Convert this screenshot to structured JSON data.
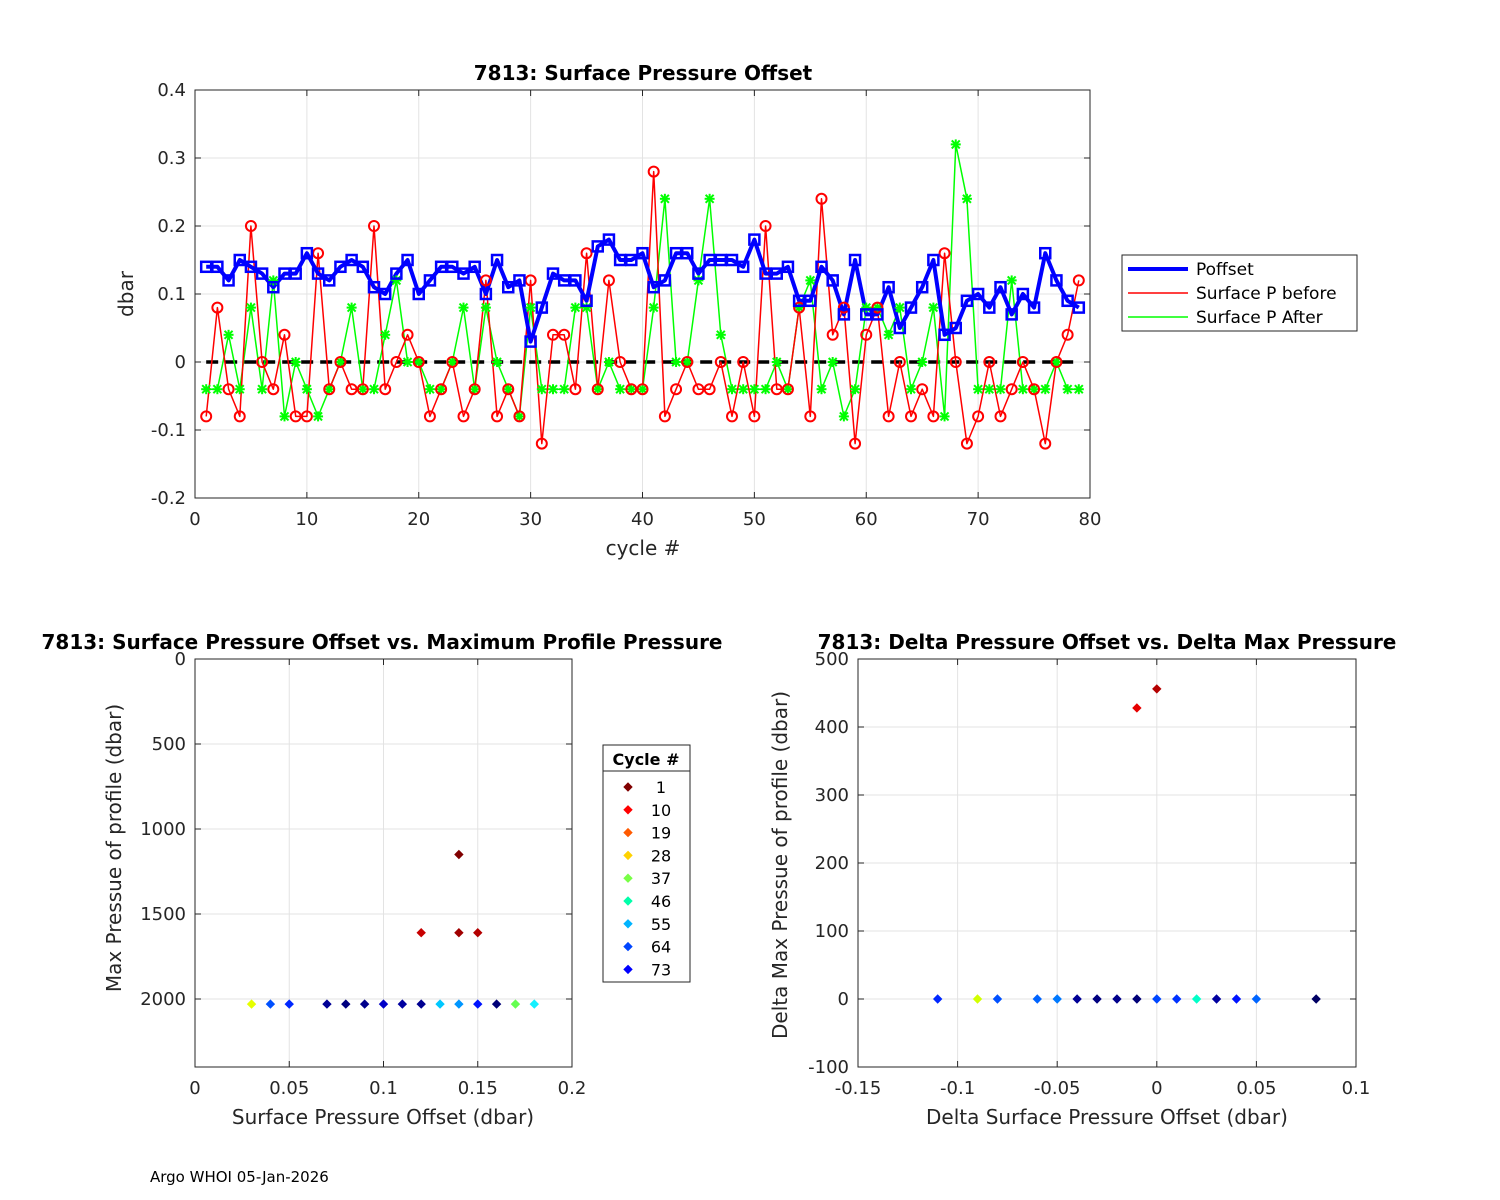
{
  "footer": "Argo WHOI 05-Jan-2026",
  "chart_data": [
    {
      "type": "line",
      "title": "7813: Surface Pressure Offset",
      "xlabel": "cycle #",
      "ylabel": "dbar",
      "xlim": [
        0,
        80
      ],
      "ylim": [
        -0.2,
        0.4
      ],
      "xticks": [
        0,
        10,
        20,
        30,
        40,
        50,
        60,
        70,
        80
      ],
      "yticks": [
        -0.2,
        -0.1,
        0,
        0.1,
        0.2,
        0.3,
        0.4
      ],
      "ytick_labels": [
        "-0.2",
        "-0.1",
        "0",
        "0.1",
        "0.2",
        "0.3",
        "0.4"
      ],
      "grid": true,
      "legend_location": "outside-right",
      "x": [
        1,
        2,
        3,
        4,
        5,
        6,
        7,
        8,
        9,
        10,
        11,
        12,
        13,
        14,
        15,
        16,
        17,
        18,
        19,
        20,
        21,
        22,
        23,
        24,
        25,
        26,
        27,
        28,
        29,
        30,
        31,
        32,
        33,
        34,
        35,
        36,
        37,
        38,
        39,
        40,
        41,
        42,
        43,
        44,
        45,
        46,
        47,
        48,
        49,
        50,
        51,
        52,
        53,
        54,
        55,
        56,
        57,
        58,
        59,
        60,
        61,
        62,
        63,
        64,
        65,
        66,
        67,
        68,
        69,
        70,
        71,
        72,
        73,
        74,
        75,
        76,
        77,
        78,
        79
      ],
      "series": [
        {
          "name": "Poffset",
          "color": "#0000ff",
          "values": [
            0.14,
            0.14,
            0.12,
            0.15,
            0.14,
            0.13,
            0.11,
            0.13,
            0.13,
            0.16,
            0.13,
            0.12,
            0.14,
            0.15,
            0.14,
            0.11,
            0.1,
            0.13,
            0.15,
            0.1,
            0.12,
            0.14,
            0.14,
            0.13,
            0.14,
            0.1,
            0.15,
            0.11,
            0.12,
            0.03,
            0.08,
            0.13,
            0.12,
            0.12,
            0.09,
            0.17,
            0.18,
            0.15,
            0.15,
            0.16,
            0.11,
            0.12,
            0.16,
            0.16,
            0.13,
            0.15,
            0.15,
            0.15,
            0.14,
            0.18,
            0.13,
            0.13,
            0.14,
            0.09,
            0.09,
            0.14,
            0.12,
            0.07,
            0.15,
            0.07,
            0.07,
            0.11,
            0.05,
            0.08,
            0.11,
            0.15,
            0.04,
            0.05,
            0.09,
            0.1,
            0.08,
            0.11,
            0.07,
            0.1,
            0.08,
            0.16,
            0.12,
            0.09,
            0.08
          ]
        },
        {
          "name": "Surface P before",
          "color": "#ff0000",
          "values": [
            -0.08,
            0.08,
            -0.04,
            -0.08,
            0.2,
            0.0,
            -0.04,
            0.04,
            -0.08,
            -0.08,
            0.16,
            -0.04,
            0.0,
            -0.04,
            -0.04,
            0.2,
            -0.04,
            0.0,
            0.04,
            0.0,
            -0.08,
            -0.04,
            0.0,
            -0.08,
            -0.04,
            0.12,
            -0.08,
            -0.04,
            -0.08,
            0.12,
            -0.12,
            0.04,
            0.04,
            -0.04,
            0.16,
            -0.04,
            0.12,
            0.0,
            -0.04,
            -0.04,
            0.28,
            -0.08,
            -0.04,
            0.0,
            -0.04,
            -0.04,
            0.0,
            -0.08,
            0.0,
            -0.08,
            0.2,
            -0.04,
            -0.04,
            0.08,
            -0.08,
            0.24,
            0.04,
            0.08,
            -0.12,
            0.04,
            0.08,
            -0.08,
            0.0,
            -0.08,
            -0.04,
            -0.08,
            0.16,
            0.0,
            -0.12,
            -0.08,
            0.0,
            -0.08,
            -0.04,
            0.0,
            -0.04,
            -0.12,
            0.0,
            0.04,
            0.12
          ]
        },
        {
          "name": "Surface P After",
          "color": "#00ff00",
          "values": [
            -0.04,
            -0.04,
            0.04,
            -0.04,
            0.08,
            -0.04,
            0.12,
            -0.08,
            0.0,
            -0.04,
            -0.08,
            -0.04,
            0.0,
            0.08,
            -0.04,
            -0.04,
            0.04,
            0.12,
            0.0,
            0.0,
            -0.04,
            -0.04,
            0.0,
            0.08,
            -0.04,
            0.08,
            0.0,
            -0.04,
            -0.08,
            0.08,
            -0.04,
            -0.04,
            -0.04,
            0.08,
            0.08,
            -0.04,
            0.0,
            -0.04,
            -0.04,
            -0.04,
            0.08,
            0.24,
            0.0,
            0.0,
            0.12,
            0.24,
            0.04,
            -0.04,
            -0.04,
            -0.04,
            -0.04,
            0.0,
            -0.04,
            0.08,
            0.12,
            -0.04,
            0.0,
            -0.08,
            -0.04,
            0.08,
            0.08,
            0.04,
            0.08,
            -0.04,
            0.0,
            0.08,
            -0.08,
            0.32,
            0.24,
            -0.04,
            -0.04,
            -0.04,
            0.12,
            -0.04,
            -0.04,
            -0.04,
            0.0,
            -0.04,
            -0.04
          ]
        }
      ],
      "legend": [
        "Poffset",
        "Surface P before",
        "Surface P After"
      ]
    },
    {
      "type": "scatter",
      "title": "7813: Surface Pressure Offset vs. Maximum Profile Pressure",
      "xlabel": "Surface Pressure Offset (dbar)",
      "ylabel": "Max Pressue of profile (dbar)",
      "xlim": [
        0,
        0.2
      ],
      "ylim": [
        0,
        2400
      ],
      "y_reversed": true,
      "xticks": [
        0,
        0.05,
        0.1,
        0.15,
        0.2
      ],
      "xtick_labels": [
        "0",
        "0.05",
        "0.1",
        "0.15",
        "0.2"
      ],
      "yticks": [
        0,
        500,
        1000,
        1500,
        2000
      ],
      "grid": true,
      "legend_title": "Cycle #",
      "legend_entries": [
        {
          "label": "1",
          "color": "#800000"
        },
        {
          "label": "10",
          "color": "#ff0000"
        },
        {
          "label": "19",
          "color": "#ff5a00"
        },
        {
          "label": "28",
          "color": "#ffd200"
        },
        {
          "label": "37",
          "color": "#78ff46"
        },
        {
          "label": "46",
          "color": "#00ffaa"
        },
        {
          "label": "55",
          "color": "#00b4ff"
        },
        {
          "label": "64",
          "color": "#0046ff"
        },
        {
          "label": "73",
          "color": "#0000ff"
        }
      ],
      "points": [
        {
          "x": 0.14,
          "y": 1150,
          "color": "#800000"
        },
        {
          "x": 0.12,
          "y": 1610,
          "color": "#c80000"
        },
        {
          "x": 0.14,
          "y": 1610,
          "color": "#a00000"
        },
        {
          "x": 0.15,
          "y": 1610,
          "color": "#b40000"
        },
        {
          "x": 0.03,
          "y": 2030,
          "color": "#e6ff00"
        },
        {
          "x": 0.04,
          "y": 2030,
          "color": "#0050ff"
        },
        {
          "x": 0.05,
          "y": 2030,
          "color": "#0028ff"
        },
        {
          "x": 0.07,
          "y": 2030,
          "color": "#000096"
        },
        {
          "x": 0.08,
          "y": 2030,
          "color": "#000080"
        },
        {
          "x": 0.09,
          "y": 2030,
          "color": "#00008c"
        },
        {
          "x": 0.1,
          "y": 2030,
          "color": "#0000c8"
        },
        {
          "x": 0.11,
          "y": 2030,
          "color": "#0000a0"
        },
        {
          "x": 0.12,
          "y": 2030,
          "color": "#000090"
        },
        {
          "x": 0.13,
          "y": 2030,
          "color": "#00c8ff"
        },
        {
          "x": 0.14,
          "y": 2030,
          "color": "#0096ff"
        },
        {
          "x": 0.15,
          "y": 2030,
          "color": "#0014ff"
        },
        {
          "x": 0.16,
          "y": 2030,
          "color": "#000078"
        },
        {
          "x": 0.17,
          "y": 2030,
          "color": "#64ff50"
        },
        {
          "x": 0.18,
          "y": 2030,
          "color": "#14f0ff"
        }
      ]
    },
    {
      "type": "scatter",
      "title": "7813: Delta Pressure Offset vs. Delta Max Pressure",
      "xlabel": "Delta Surface Pressure Offset (dbar)",
      "ylabel": "Delta Max Pressue of profile (dbar)",
      "xlim": [
        -0.15,
        0.1
      ],
      "ylim": [
        -100,
        500
      ],
      "xticks": [
        -0.15,
        -0.1,
        -0.05,
        0,
        0.05,
        0.1
      ],
      "xtick_labels": [
        "-0.15",
        "-0.1",
        "-0.05",
        "0",
        "0.05",
        "0.1"
      ],
      "yticks": [
        -100,
        0,
        100,
        200,
        300,
        400,
        500
      ],
      "grid": true,
      "points": [
        {
          "x": 0.0,
          "y": 456,
          "color": "#b40000"
        },
        {
          "x": -0.01,
          "y": 428,
          "color": "#e60000"
        },
        {
          "x": -0.11,
          "y": 0,
          "color": "#0028ff"
        },
        {
          "x": -0.09,
          "y": 0,
          "color": "#d2ff00"
        },
        {
          "x": -0.08,
          "y": 0,
          "color": "#0050ff"
        },
        {
          "x": -0.06,
          "y": 0,
          "color": "#0064ff"
        },
        {
          "x": -0.05,
          "y": 0,
          "color": "#0078ff"
        },
        {
          "x": -0.04,
          "y": 0,
          "color": "#000096"
        },
        {
          "x": -0.03,
          "y": 0,
          "color": "#000080"
        },
        {
          "x": -0.02,
          "y": 0,
          "color": "#00008c"
        },
        {
          "x": -0.01,
          "y": 0,
          "color": "#000078"
        },
        {
          "x": 0.0,
          "y": 0,
          "color": "#0046ff"
        },
        {
          "x": 0.01,
          "y": 0,
          "color": "#0032ff"
        },
        {
          "x": 0.02,
          "y": 0,
          "color": "#00ffc8"
        },
        {
          "x": 0.03,
          "y": 0,
          "color": "#0000a0"
        },
        {
          "x": 0.04,
          "y": 0,
          "color": "#0014ff"
        },
        {
          "x": 0.05,
          "y": 0,
          "color": "#0064ff"
        },
        {
          "x": 0.08,
          "y": 0,
          "color": "#000064"
        }
      ]
    }
  ]
}
